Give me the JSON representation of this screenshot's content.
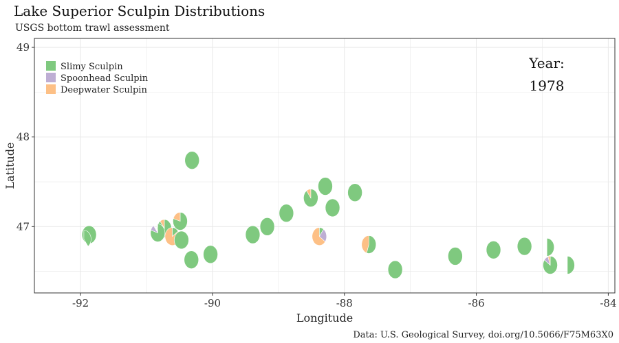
{
  "title": "Lake Superior Sculpin Distributions",
  "subtitle": "USGS bottom trawl assessment",
  "caption": "Data: U.S. Geological Survey, doi.org/10.5066/F75M63X0",
  "year_label": "Year:",
  "year_value": "1978",
  "colors": {
    "slimy": "#7fc97f",
    "spoonhead": "#beaed4",
    "deepwater": "#fdc086",
    "grid": "#e8e8e8",
    "panel_border": "#333333"
  },
  "chart_data": {
    "type": "scatter",
    "subtype": "pie-glyph map",
    "xlabel": "Longitude",
    "ylabel": "Latitude",
    "xlim": [
      -92.7,
      -83.9
    ],
    "ylim": [
      46.26,
      49.1
    ],
    "x_ticks": [
      -92,
      -90,
      -88,
      -86,
      -84
    ],
    "y_ticks": [
      47,
      48,
      49
    ],
    "x_tick_labels": [
      "-92",
      "-90",
      "-88",
      "-86",
      "-84"
    ],
    "y_tick_labels": [
      "47",
      "48",
      "49"
    ],
    "grid": true,
    "legend_position": "top-left",
    "series": [
      {
        "name": "Slimy Sculpin",
        "key": "slimy"
      },
      {
        "name": "Spoonhead Sculpin",
        "key": "spoonhead"
      },
      {
        "name": "Deepwater Sculpin",
        "key": "deepwater"
      }
    ],
    "points": [
      {
        "lon": -91.87,
        "lat": 46.91,
        "slimy": 1.0,
        "spoonhead": 0.0,
        "deepwater": 0.0
      },
      {
        "lon": -91.95,
        "lat": 46.86,
        "slimy": 0.4,
        "spoonhead": 0.0,
        "deepwater": 0.0
      },
      {
        "lon": -90.31,
        "lat": 47.74,
        "slimy": 1.0,
        "spoonhead": 0.0,
        "deepwater": 0.0
      },
      {
        "lon": -90.73,
        "lat": 46.98,
        "slimy": 0.9,
        "spoonhead": 0.0,
        "deepwater": 0.1
      },
      {
        "lon": -90.83,
        "lat": 46.93,
        "slimy": 0.8,
        "spoonhead": 0.1,
        "deepwater": 0.0
      },
      {
        "lon": -90.61,
        "lat": 46.89,
        "slimy": 0.15,
        "spoonhead": 0.0,
        "deepwater": 0.85
      },
      {
        "lon": -90.49,
        "lat": 47.06,
        "slimy": 0.8,
        "spoonhead": 0.0,
        "deepwater": 0.2
      },
      {
        "lon": -90.47,
        "lat": 46.85,
        "slimy": 1.0,
        "spoonhead": 0.0,
        "deepwater": 0.0
      },
      {
        "lon": -90.32,
        "lat": 46.63,
        "slimy": 1.0,
        "spoonhead": 0.0,
        "deepwater": 0.0
      },
      {
        "lon": -90.03,
        "lat": 46.69,
        "slimy": 1.0,
        "spoonhead": 0.0,
        "deepwater": 0.0
      },
      {
        "lon": -89.39,
        "lat": 46.91,
        "slimy": 1.0,
        "spoonhead": 0.0,
        "deepwater": 0.0
      },
      {
        "lon": -89.17,
        "lat": 47.0,
        "slimy": 1.0,
        "spoonhead": 0.0,
        "deepwater": 0.0
      },
      {
        "lon": -88.88,
        "lat": 47.15,
        "slimy": 1.0,
        "spoonhead": 0.0,
        "deepwater": 0.0
      },
      {
        "lon": -88.51,
        "lat": 47.32,
        "slimy": 0.9,
        "spoonhead": 0.0,
        "deepwater": 0.1
      },
      {
        "lon": -88.29,
        "lat": 47.45,
        "slimy": 1.0,
        "spoonhead": 0.0,
        "deepwater": 0.0
      },
      {
        "lon": -88.18,
        "lat": 47.21,
        "slimy": 1.0,
        "spoonhead": 0.0,
        "deepwater": 0.0
      },
      {
        "lon": -87.84,
        "lat": 47.38,
        "slimy": 1.0,
        "spoonhead": 0.0,
        "deepwater": 0.0
      },
      {
        "lon": -88.38,
        "lat": 46.89,
        "slimy": 0.1,
        "spoonhead": 0.25,
        "deepwater": 0.65
      },
      {
        "lon": -87.63,
        "lat": 46.8,
        "slimy": 0.55,
        "spoonhead": 0.0,
        "deepwater": 0.45
      },
      {
        "lon": -87.23,
        "lat": 46.52,
        "slimy": 1.0,
        "spoonhead": 0.0,
        "deepwater": 0.0
      },
      {
        "lon": -86.32,
        "lat": 46.67,
        "slimy": 1.0,
        "spoonhead": 0.0,
        "deepwater": 0.0
      },
      {
        "lon": -85.74,
        "lat": 46.74,
        "slimy": 1.0,
        "spoonhead": 0.0,
        "deepwater": 0.0
      },
      {
        "lon": -85.27,
        "lat": 46.78,
        "slimy": 1.0,
        "spoonhead": 0.0,
        "deepwater": 0.0
      },
      {
        "lon": -84.93,
        "lat": 46.77,
        "slimy": 0.5,
        "spoonhead": 0.0,
        "deepwater": 0.0
      },
      {
        "lon": -84.88,
        "lat": 46.57,
        "slimy": 0.85,
        "spoonhead": 0.1,
        "deepwater": 0.05
      },
      {
        "lon": -84.62,
        "lat": 46.57,
        "slimy": 0.5,
        "spoonhead": 0.0,
        "deepwater": 0.0
      }
    ]
  }
}
